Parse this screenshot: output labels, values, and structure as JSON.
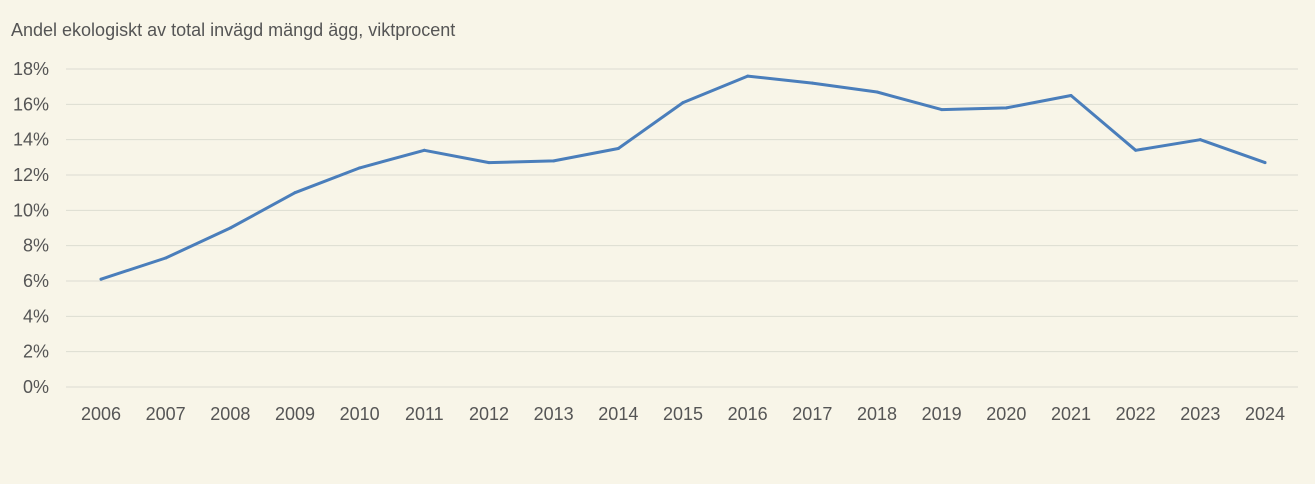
{
  "chart_data": {
    "type": "line",
    "ylabel": "Andel ekologiskt av total invägd mängd ägg, viktprocent",
    "xlabel": "",
    "title": "",
    "x": [
      "2006",
      "2007",
      "2008",
      "2009",
      "2010",
      "2011",
      "2012",
      "2013",
      "2014",
      "2015",
      "2016",
      "2017",
      "2018",
      "2019",
      "2020",
      "2021",
      "2022",
      "2023",
      "2024"
    ],
    "series": [
      {
        "values": [
          6.1,
          7.3,
          9.0,
          11.0,
          12.4,
          13.4,
          12.7,
          12.8,
          13.5,
          16.1,
          17.6,
          17.2,
          16.7,
          15.7,
          15.8,
          16.5,
          13.4,
          14.0,
          12.7
        ]
      }
    ],
    "ylim": [
      0,
      18
    ],
    "yticks": [
      0,
      2,
      4,
      6,
      8,
      10,
      12,
      14,
      16,
      18
    ],
    "ytick_labels": [
      "0%",
      "2%",
      "4%",
      "6%",
      "8%",
      "10%",
      "12%",
      "14%",
      "16%",
      "18%"
    ],
    "grid": true,
    "colors": {
      "line": "#4a7ebb",
      "grid": "#dcdcd2",
      "background": "#f8f5e8",
      "text": "#555555"
    }
  }
}
